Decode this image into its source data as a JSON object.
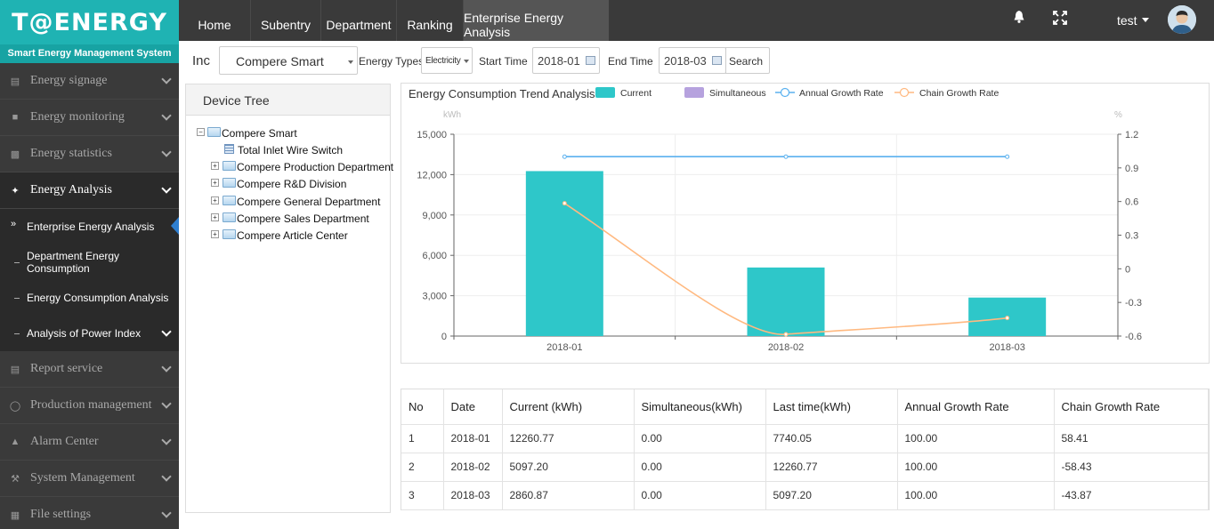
{
  "brand": {
    "logo": "T@ENERGY",
    "subtitle": "Smart Energy Management System"
  },
  "sidebar": {
    "items": [
      {
        "label": "Energy signage",
        "icon": "signage-icon"
      },
      {
        "label": "Energy monitoring",
        "icon": "camera-icon"
      },
      {
        "label": "Energy statistics",
        "icon": "bar-chart-icon"
      },
      {
        "label": "Energy Analysis",
        "icon": "leaf-icon",
        "active": true
      },
      {
        "label": "Report service",
        "icon": "report-icon"
      },
      {
        "label": "Production management",
        "icon": "clock-icon"
      },
      {
        "label": "Alarm Center",
        "icon": "bell-icon"
      },
      {
        "label": "System Management",
        "icon": "wrench-icon"
      },
      {
        "label": "File settings",
        "icon": "file-icon"
      }
    ],
    "sub_items": [
      {
        "label": "Enterprise Energy Analysis",
        "active": true
      },
      {
        "label": "Department Energy Consumption"
      },
      {
        "label": "Energy Consumption Analysis"
      },
      {
        "label": "Analysis of Power Index"
      }
    ]
  },
  "nav": {
    "tabs": [
      {
        "label": "Home"
      },
      {
        "label": "Subentry"
      },
      {
        "label": "Department"
      },
      {
        "label": "Ranking"
      },
      {
        "label": "Enterprise Energy Analysis",
        "active": true
      }
    ],
    "user": "test"
  },
  "filters": {
    "inc_label": "Inc",
    "company": "Compere Smart",
    "energy_types_label": "Energy Types",
    "energy_type": "Electricity",
    "start_label": "Start Time",
    "start_value": "2018-01",
    "end_label": "End Time",
    "end_value": "2018-03",
    "search_label": "Search"
  },
  "tree": {
    "title": "Device Tree",
    "root": "Compere Smart",
    "switch": "Total Inlet Wire Switch",
    "children": [
      "Compere Production Department",
      "Compere R&D Division",
      "Compere General Department",
      "Compere Sales Department",
      "Compere Article Center"
    ]
  },
  "chart_data": {
    "type": "bar",
    "title": "Energy Consumption Trend Analysis",
    "categories": [
      "2018-01",
      "2018-02",
      "2018-03"
    ],
    "series": [
      {
        "name": "Current",
        "type": "bar",
        "axis": "left",
        "color": "#2ec7c9",
        "values": [
          12260.77,
          5097.2,
          2860.87
        ]
      },
      {
        "name": "Simultaneous",
        "type": "bar",
        "axis": "left",
        "color": "#b6a2de",
        "values": [
          0,
          0,
          0
        ]
      },
      {
        "name": "Annual Growth Rate",
        "type": "line",
        "axis": "right",
        "color": "#5ab1ef",
        "values": [
          1.0,
          1.0,
          1.0
        ]
      },
      {
        "name": "Chain Growth Rate",
        "type": "line",
        "axis": "right",
        "color": "#ffb980",
        "values": [
          0.5841,
          -0.5843,
          -0.4387
        ]
      }
    ],
    "ylabel": "kWh",
    "ylabel_right": "%",
    "ylim": [
      0,
      15000
    ],
    "yticks": [
      "15,000",
      "12,000",
      "9,000",
      "6,000",
      "3,000",
      "0"
    ],
    "ylim_right": [
      -0.6,
      1.2
    ],
    "yticks_right": [
      "1.2",
      "0.9",
      "0.6",
      "0.3",
      "0",
      "-0.3",
      "-0.6"
    ],
    "legend": "top",
    "grid": true
  },
  "table": {
    "headers": [
      "No",
      "Date",
      "Current (kWh)",
      "Simultaneous(kWh)",
      "Last time(kWh)",
      "Annual Growth Rate",
      "Chain Growth Rate"
    ],
    "rows": [
      [
        "1",
        "2018-01",
        "12260.77",
        "0.00",
        "7740.05",
        "100.00",
        "58.41"
      ],
      [
        "2",
        "2018-02",
        "5097.20",
        "0.00",
        "12260.77",
        "100.00",
        "-58.43"
      ],
      [
        "3",
        "2018-03",
        "2860.87",
        "0.00",
        "5097.20",
        "100.00",
        "-43.87"
      ]
    ]
  }
}
